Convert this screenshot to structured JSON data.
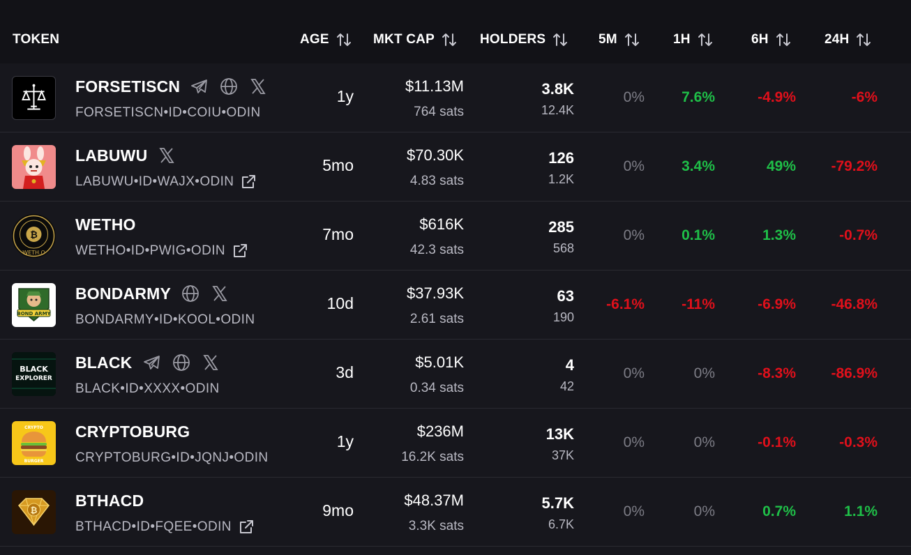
{
  "header": {
    "token": "TOKEN",
    "age": "AGE",
    "mkt_cap": "MKT CAP",
    "holders": "HOLDERS",
    "m5": "5M",
    "h1": "1H",
    "h6": "6H",
    "h24": "24H"
  },
  "colors": {
    "background": "#17171d",
    "header_background": "#121217",
    "positive": "#1fbf48",
    "negative": "#e0101b",
    "neutral": "#7d7d86",
    "secondary_text": "#b9b9c3"
  },
  "rows": [
    {
      "name": "FORSETISCN",
      "id": "FORSETISCN•ID•COIU•ODIN",
      "icons": [
        "telegram-icon",
        "globe-icon",
        "x-icon"
      ],
      "external_link": false,
      "avatar": "scales-of-justice",
      "age": "1y",
      "mkt_cap": "$11.13M",
      "price": "764 sats",
      "holders": "3.8K",
      "holders_sub": "12.4K",
      "m5": "0%",
      "h1": "7.6%",
      "h6": "-4.9%",
      "h24": "-6%"
    },
    {
      "name": "LABUWU",
      "id": "LABUWU•ID•WAJX•ODIN",
      "icons": [
        "x-icon"
      ],
      "external_link": true,
      "avatar": "labubu-character",
      "age": "5mo",
      "mkt_cap": "$70.30K",
      "price": "4.83 sats",
      "holders": "126",
      "holders_sub": "1.2K",
      "m5": "0%",
      "h1": "3.4%",
      "h6": "49%",
      "h24": "-79.2%"
    },
    {
      "name": "WETHO",
      "id": "WETHO•ID•PWIG•ODIN",
      "icons": [],
      "external_link": true,
      "avatar": "bitcoin-seal",
      "avatar_label": "WETH.O",
      "age": "7mo",
      "mkt_cap": "$616K",
      "price": "42.3 sats",
      "holders": "285",
      "holders_sub": "568",
      "m5": "0%",
      "h1": "0.1%",
      "h6": "1.3%",
      "h24": "-0.7%"
    },
    {
      "name": "BONDARMY",
      "id": "BONDARMY•ID•KOOL•ODIN",
      "icons": [
        "globe-icon",
        "x-icon"
      ],
      "external_link": false,
      "avatar": "bond-army-badge",
      "avatar_label": "BOND ARMY",
      "age": "10d",
      "mkt_cap": "$37.93K",
      "price": "2.61 sats",
      "holders": "63",
      "holders_sub": "190",
      "m5": "-6.1%",
      "h1": "-11%",
      "h6": "-6.9%",
      "h24": "-46.8%"
    },
    {
      "name": "BLACK",
      "id": "BLACK•ID•XXXX•ODIN",
      "icons": [
        "telegram-icon",
        "globe-icon",
        "x-icon"
      ],
      "external_link": false,
      "avatar": "black-explorer",
      "avatar_label_1": "BLACK",
      "avatar_label_2": "EXPLORER",
      "age": "3d",
      "mkt_cap": "$5.01K",
      "price": "0.34 sats",
      "holders": "4",
      "holders_sub": "42",
      "m5": "0%",
      "h1": "0%",
      "h6": "-8.3%",
      "h24": "-86.9%"
    },
    {
      "name": "CRYPTOBURG",
      "id": "CRYPTOBURG•ID•JQNJ•ODIN",
      "icons": [],
      "external_link": false,
      "avatar": "burger",
      "avatar_label_1": "CRYPTO",
      "avatar_label_2": "BURGER",
      "age": "1y",
      "mkt_cap": "$236M",
      "price": "16.2K sats",
      "holders": "13K",
      "holders_sub": "37K",
      "m5": "0%",
      "h1": "0%",
      "h6": "-0.1%",
      "h24": "-0.3%"
    },
    {
      "name": "BTHACD",
      "id": "BTHACD•ID•FQEE•ODIN",
      "icons": [],
      "external_link": true,
      "avatar": "gold-bitcoin-diamond",
      "age": "9mo",
      "mkt_cap": "$48.37M",
      "price": "3.3K sats",
      "holders": "5.7K",
      "holders_sub": "6.7K",
      "m5": "0%",
      "h1": "0%",
      "h6": "0.7%",
      "h24": "1.1%"
    }
  ]
}
